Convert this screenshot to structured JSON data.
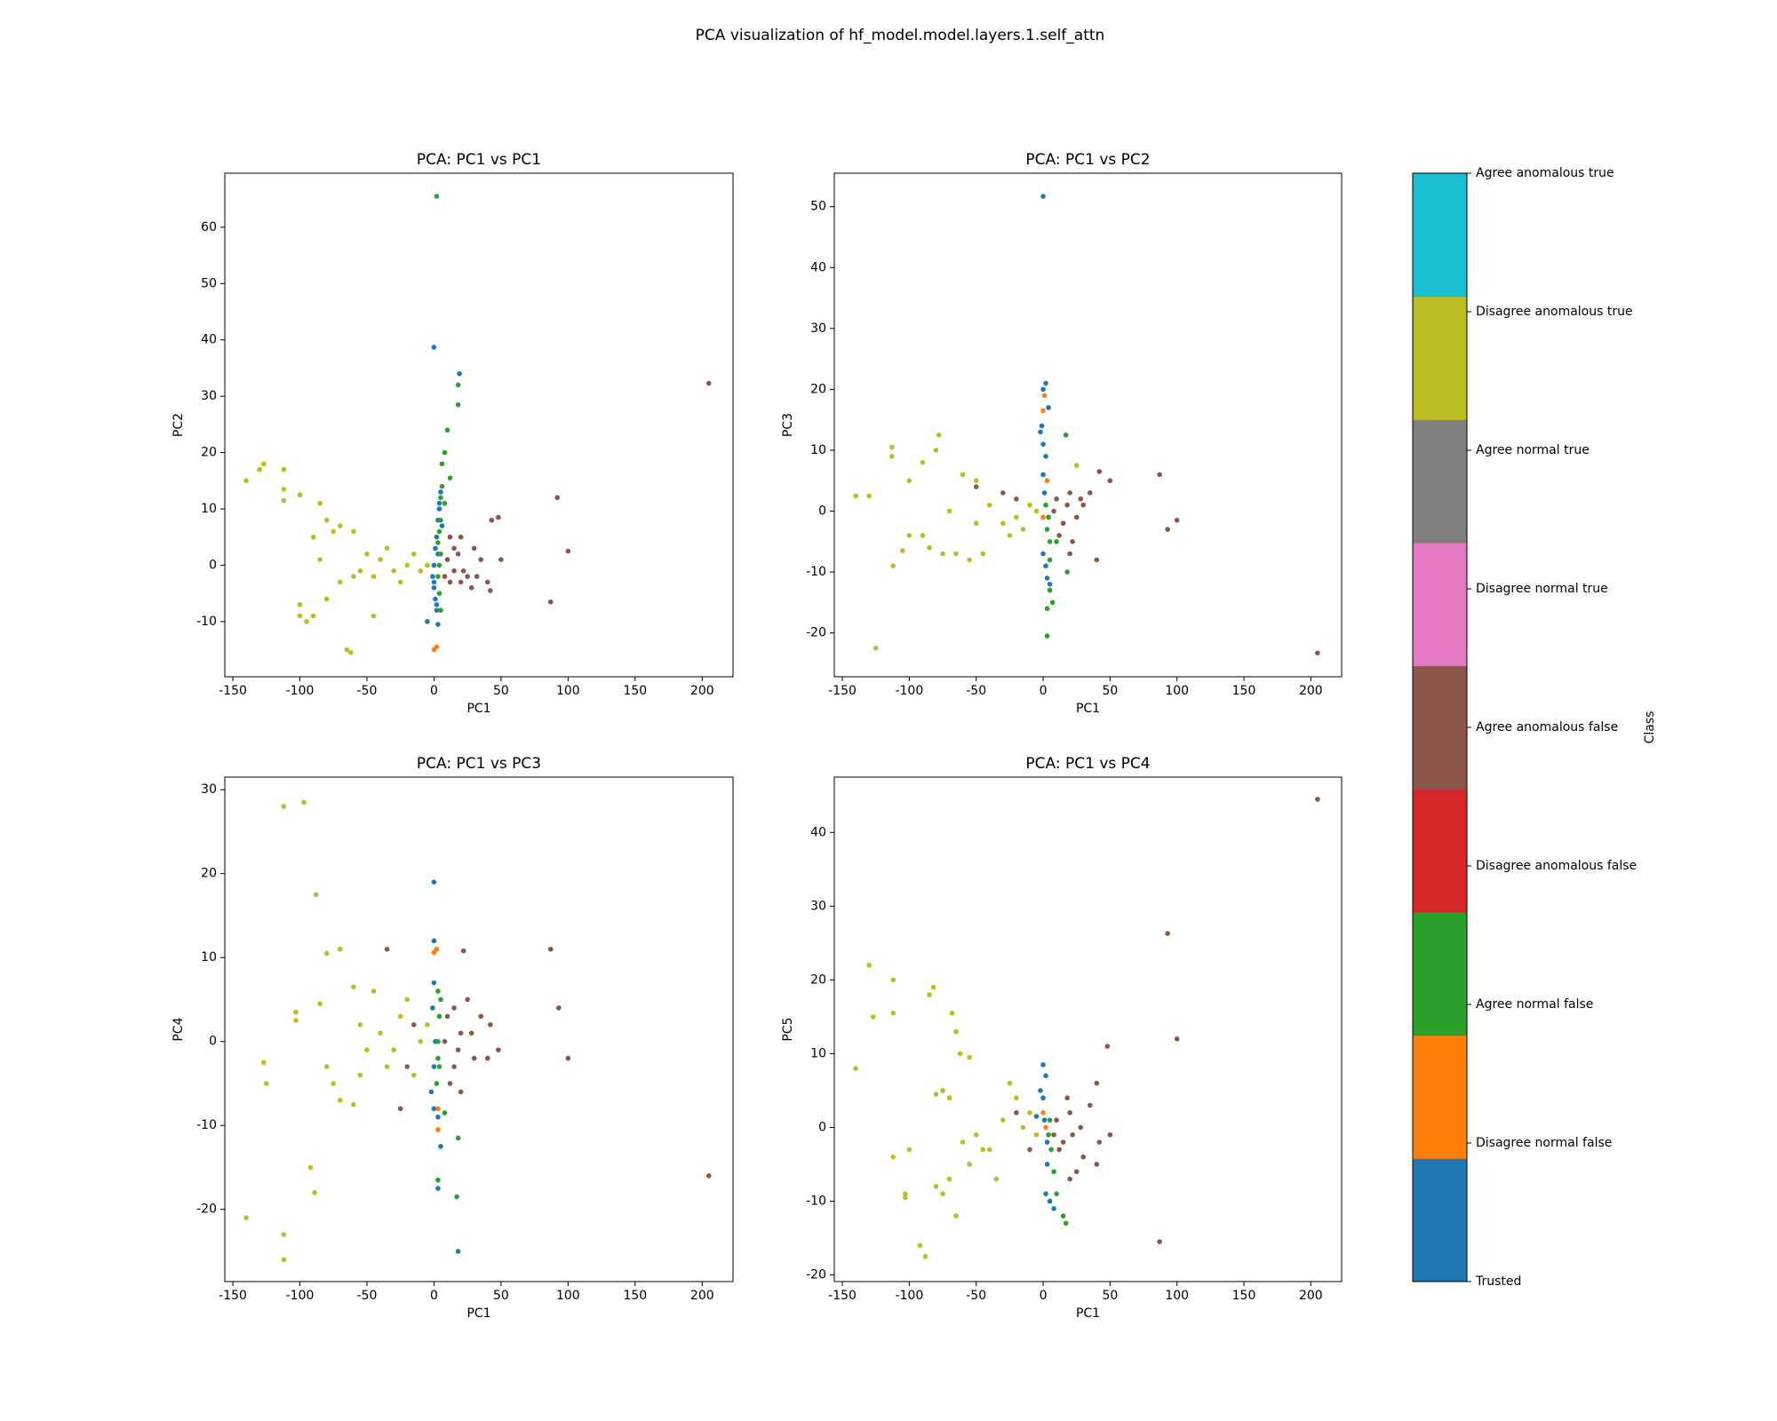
{
  "title": "PCA visualization of hf_model.model.layers.1.self_attn",
  "colorbar": {
    "label": "Class",
    "clim": [
      0,
      8
    ],
    "colors": [
      "#1f77b4",
      "#ff7f0e",
      "#2ca02c",
      "#d62728",
      "#8c564b",
      "#e377c2",
      "#7f7f7f",
      "#bcbd22",
      "#17becf"
    ],
    "ticks": [
      {
        "value": 0,
        "label": "Trusted"
      },
      {
        "value": 1,
        "label": "Disagree normal false"
      },
      {
        "value": 2,
        "label": "Agree normal false"
      },
      {
        "value": 3,
        "label": "Disagree anomalous false"
      },
      {
        "value": 4,
        "label": "Agree anomalous false"
      },
      {
        "value": 5,
        "label": "Disagree normal true"
      },
      {
        "value": 6,
        "label": "Agree normal true"
      },
      {
        "value": 7,
        "label": "Disagree anomalous true"
      },
      {
        "value": 8,
        "label": "Agree anomalous true"
      }
    ]
  },
  "chart_data": [
    {
      "type": "scatter",
      "title": "PCA: PC1 vs PC1",
      "xlabel": "PC1",
      "ylabel": "PC2",
      "xlim": [
        -156,
        223
      ],
      "xticks": [
        -150,
        -100,
        -50,
        0,
        50,
        100,
        150,
        200
      ],
      "ylim": [
        -19.8,
        69.6
      ],
      "yticks": [
        -10,
        0,
        10,
        20,
        30,
        40,
        50,
        60
      ],
      "series": [
        {
          "name": "Disagree anomalous true",
          "x": [
            -140,
            -130,
            -127,
            -112,
            -112,
            -112,
            -100,
            -85,
            -80,
            -75,
            -70,
            -60,
            -90,
            -100,
            -100,
            -95,
            -90,
            -80,
            -65,
            -62,
            -45,
            -70,
            -55,
            -50,
            -40,
            -35,
            -30,
            -20,
            -15,
            -10,
            -5,
            -25,
            -45,
            -60,
            -85
          ],
          "values": [
            15,
            17,
            18,
            17,
            13.5,
            11.5,
            12.5,
            11,
            8,
            6,
            7,
            6,
            5,
            -7,
            -9,
            -10,
            -9,
            -6,
            -15,
            -15.5,
            -9,
            -3,
            -1,
            2,
            1,
            3,
            -1,
            0,
            2,
            -1,
            0,
            -3,
            -2,
            -2,
            1
          ]
        },
        {
          "name": "Agree anomalous false",
          "x": [
            205,
            92,
            100,
            87,
            48,
            43,
            50,
            40,
            42,
            30,
            25,
            20,
            15,
            10,
            12,
            18,
            22,
            28,
            35,
            8,
            15,
            32,
            20,
            12
          ],
          "values": [
            32.3,
            12,
            2.5,
            -6.5,
            8.5,
            8,
            1,
            -3,
            -4.5,
            3,
            -2,
            5,
            -1,
            1,
            -3,
            2,
            -1,
            -4,
            1,
            -2,
            3,
            -2,
            -3,
            5
          ]
        },
        {
          "name": "Trusted",
          "x": [
            0,
            19,
            5,
            4,
            3,
            2,
            1,
            0,
            -1,
            0,
            1,
            2,
            3,
            -5,
            2,
            4,
            3,
            0,
            6
          ],
          "values": [
            38.7,
            34,
            13,
            10,
            8,
            5,
            3,
            0,
            -2,
            -4,
            -6,
            -8,
            -10.5,
            -10,
            -7,
            11,
            2,
            -3,
            7
          ]
        },
        {
          "name": "Disagree normal false",
          "x": [
            0,
            2
          ],
          "values": [
            -15,
            -14.5
          ]
        },
        {
          "name": "Agree normal false",
          "x": [
            2,
            18,
            18,
            10,
            8,
            12,
            6,
            5,
            5,
            4,
            3,
            5,
            4,
            3,
            4,
            5,
            6,
            8
          ],
          "values": [
            65.5,
            32,
            28.5,
            24,
            20,
            15.5,
            18,
            12,
            8,
            6,
            4,
            2,
            0,
            -2,
            -5,
            -8,
            14,
            11
          ]
        }
      ]
    },
    {
      "type": "scatter",
      "title": "PCA: PC1 vs PC2",
      "xlabel": "PC1",
      "ylabel": "PC3",
      "xlim": [
        -156,
        223
      ],
      "xticks": [
        -150,
        -100,
        -50,
        0,
        50,
        100,
        150,
        200
      ],
      "ylim": [
        -27.2,
        55.5
      ],
      "yticks": [
        -20,
        -10,
        0,
        10,
        20,
        30,
        40,
        50
      ],
      "series": [
        {
          "name": "Disagree anomalous true",
          "x": [
            -140,
            -130,
            -125,
            -113,
            -113,
            -112,
            -100,
            -90,
            -78,
            -80,
            -100,
            -105,
            -90,
            -85,
            -75,
            -65,
            -55,
            -45,
            -60,
            -50,
            -40,
            -30,
            -20,
            -10,
            -15,
            -5,
            -25,
            -70,
            -50,
            25
          ],
          "values": [
            2.5,
            2.5,
            -22.5,
            10.5,
            9,
            -9,
            5,
            8,
            12.5,
            10,
            -4,
            -6.5,
            -4,
            -6,
            -7,
            -7,
            -8,
            -7,
            6,
            5,
            1,
            -2,
            -1,
            1,
            -3,
            0,
            -4,
            0,
            -2,
            7.5
          ]
        },
        {
          "name": "Agree anomalous false",
          "x": [
            205,
            100,
            87,
            93,
            50,
            42,
            40,
            35,
            30,
            25,
            20,
            15,
            10,
            12,
            22,
            28,
            8,
            -20,
            -30,
            -50,
            18,
            20
          ],
          "values": [
            -23.3,
            -1.5,
            6,
            -3,
            5,
            6.5,
            -8,
            3,
            1,
            -1,
            3,
            -2,
            2,
            -4,
            -5,
            2,
            0,
            2,
            3,
            4,
            1,
            -7
          ]
        },
        {
          "name": "Trusted",
          "x": [
            0,
            2,
            0,
            -2,
            0,
            2,
            0,
            1,
            0,
            2,
            3,
            5,
            -1,
            4
          ],
          "values": [
            51.7,
            21,
            20,
            13,
            11,
            9,
            6,
            3,
            -7,
            -9,
            -11,
            -12,
            14,
            17
          ]
        },
        {
          "name": "Disagree normal false",
          "x": [
            1,
            0,
            3,
            0
          ],
          "values": [
            19,
            16.5,
            5,
            -1
          ]
        },
        {
          "name": "Agree normal false",
          "x": [
            3,
            3,
            5,
            7,
            17,
            5,
            3,
            4,
            2,
            5,
            18,
            10
          ],
          "values": [
            -20.5,
            -16,
            -13,
            -15,
            12.5,
            -8,
            -3,
            -1,
            1,
            -5,
            -10,
            -5
          ]
        }
      ]
    },
    {
      "type": "scatter",
      "title": "PCA: PC1 vs PC3",
      "xlabel": "PC1",
      "ylabel": "PC4",
      "xlim": [
        -156,
        223
      ],
      "xticks": [
        -150,
        -100,
        -50,
        0,
        50,
        100,
        150,
        200
      ],
      "ylim": [
        -28.6,
        31.5
      ],
      "yticks": [
        -20,
        -10,
        0,
        10,
        20,
        30
      ],
      "series": [
        {
          "name": "Disagree anomalous true",
          "x": [
            -140,
            -127,
            -125,
            -112,
            -112,
            -112,
            -97,
            -92,
            -89,
            -88,
            -103,
            -103,
            -85,
            -80,
            -70,
            -60,
            -80,
            -75,
            -70,
            -60,
            -55,
            -50,
            -45,
            -40,
            -30,
            -25,
            -15,
            -10,
            -5,
            -20,
            -35,
            -55
          ],
          "values": [
            -21,
            -2.5,
            -5,
            28,
            -23,
            -26,
            28.5,
            -15,
            -18,
            17.5,
            3.5,
            2.5,
            4.5,
            10.5,
            11,
            6.5,
            -3,
            -5,
            -7,
            -7.5,
            -4,
            -1,
            6,
            1,
            -1,
            3,
            -4,
            0,
            2,
            5,
            -3,
            2
          ]
        },
        {
          "name": "Agree anomalous false",
          "x": [
            205,
            100,
            93,
            87,
            48,
            42,
            35,
            30,
            25,
            20,
            15,
            10,
            12,
            22,
            -35,
            -20,
            -15,
            8,
            18,
            28,
            20,
            -25,
            40,
            15
          ],
          "values": [
            -16,
            -2,
            4,
            11,
            -1,
            2,
            3,
            -2,
            5,
            1,
            -3,
            3,
            -5,
            10.8,
            11,
            -3,
            2,
            0,
            -1,
            1,
            -6,
            -8,
            -2,
            4
          ]
        },
        {
          "name": "Trusted",
          "x": [
            0,
            0,
            0,
            -1,
            1,
            0,
            -2,
            3,
            5,
            18,
            3,
            0
          ],
          "values": [
            19,
            12,
            7,
            4,
            0,
            -3,
            -6,
            -9,
            -12.5,
            -25,
            -17.5,
            -8
          ]
        },
        {
          "name": "Disagree normal false",
          "x": [
            0,
            2,
            3,
            3
          ],
          "values": [
            10.6,
            11,
            -10.5,
            -8
          ]
        },
        {
          "name": "Agree normal false",
          "x": [
            3,
            18,
            17,
            8,
            3,
            4,
            3,
            4,
            2,
            5,
            3
          ],
          "values": [
            -16.5,
            -11.5,
            -18.5,
            -8.5,
            6,
            3,
            0,
            -3,
            -5,
            5,
            -2
          ]
        }
      ]
    },
    {
      "type": "scatter",
      "title": "PCA: PC1 vs PC4",
      "xlabel": "PC1",
      "ylabel": "PC5",
      "xlim": [
        -156,
        223
      ],
      "xticks": [
        -150,
        -100,
        -50,
        0,
        50,
        100,
        150,
        200
      ],
      "ylim": [
        -20.9,
        47.5
      ],
      "yticks": [
        -20,
        -10,
        0,
        10,
        20,
        30,
        40
      ],
      "series": [
        {
          "name": "Disagree anomalous true",
          "x": [
            -140,
            -130,
            -127,
            -112,
            -112,
            -112,
            -100,
            -103,
            -103,
            -92,
            -88,
            -85,
            -82,
            -68,
            -65,
            -62,
            -55,
            -75,
            -80,
            -70,
            -60,
            -70,
            -65,
            -80,
            -75,
            -55,
            -50,
            -40,
            -30,
            -25,
            -20,
            -15,
            -10,
            -5,
            -35,
            -45
          ],
          "values": [
            8,
            22,
            15,
            20,
            15.5,
            -4,
            -3,
            -9,
            -9.5,
            -16,
            -17.5,
            18,
            19,
            15.5,
            13,
            10,
            9.5,
            5,
            4.5,
            4,
            -2,
            -7,
            -12,
            -8,
            -9,
            -5,
            -1,
            -3,
            1,
            6,
            4,
            0,
            2,
            -1,
            -7,
            -3
          ]
        },
        {
          "name": "Agree anomalous false",
          "x": [
            205,
            93,
            100,
            87,
            48,
            40,
            50,
            42,
            35,
            30,
            25,
            20,
            15,
            10,
            12,
            22,
            28,
            8,
            18,
            20,
            -20,
            40,
            -10
          ],
          "values": [
            44.5,
            26.3,
            12,
            -15.5,
            11,
            6,
            -1,
            -2,
            3,
            -4,
            -6,
            2,
            -2,
            1,
            -3,
            -1,
            0,
            -1,
            4,
            -7,
            2,
            -5,
            -3
          ]
        },
        {
          "name": "Trusted",
          "x": [
            0,
            2,
            0,
            -2,
            1,
            3,
            2,
            5,
            8,
            -5,
            3
          ],
          "values": [
            8.5,
            7,
            4,
            5,
            1,
            -2,
            -9,
            -10,
            -11,
            1.5,
            -5
          ]
        },
        {
          "name": "Disagree normal false",
          "x": [
            2,
            0
          ],
          "values": [
            0,
            2
          ]
        },
        {
          "name": "Agree normal false",
          "x": [
            15,
            17,
            10,
            8,
            6,
            4,
            5
          ],
          "values": [
            -12,
            -13,
            -9,
            -6,
            -3,
            -1,
            1
          ]
        }
      ]
    }
  ]
}
